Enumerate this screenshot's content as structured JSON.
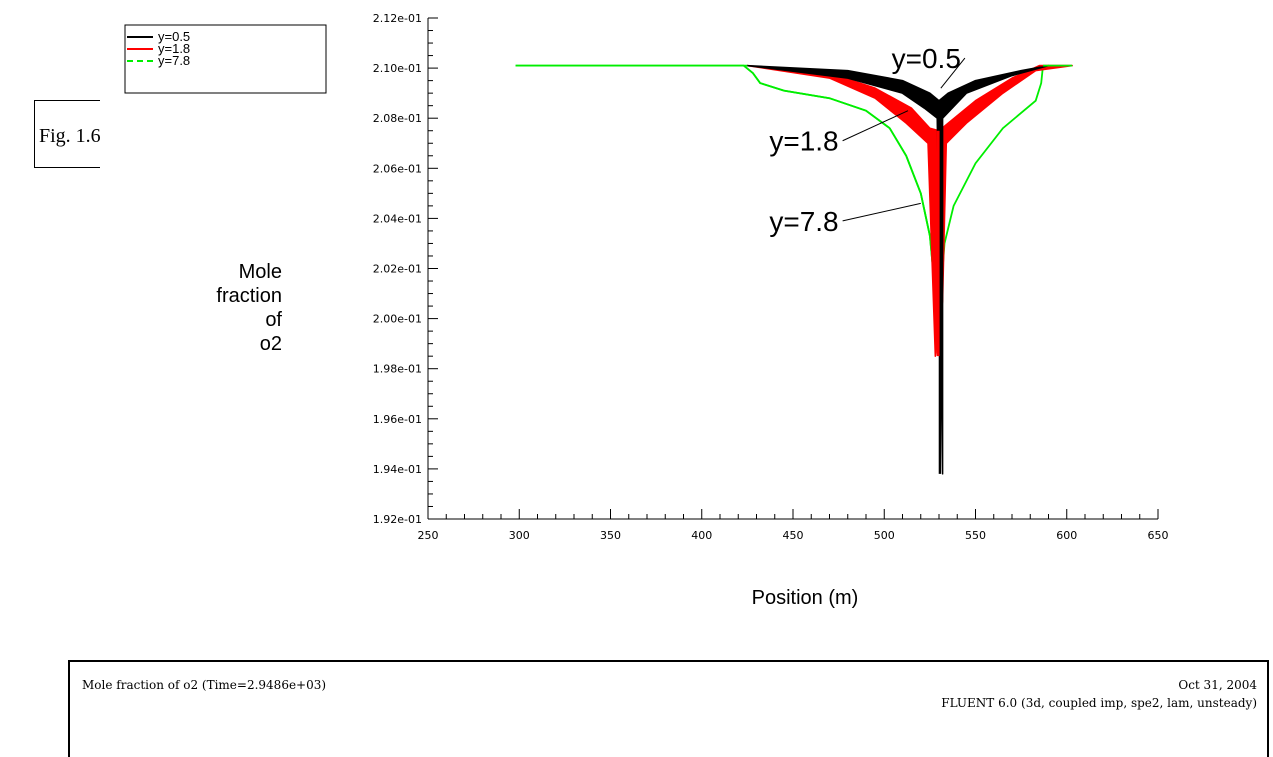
{
  "figure_label": "Fig. 1.6",
  "footer": {
    "left": "Mole fraction of o2  (Time=2.9486e+03)",
    "date": "Oct 31, 2004",
    "solver": "FLUENT 6.0 (3d, coupled imp, spe2, lam, unsteady)"
  },
  "colors": {
    "y05": "#000000",
    "y18": "#ff0000",
    "y78": "#00ee00"
  },
  "chart_data": {
    "type": "line",
    "xlabel": "Position (m)",
    "ylabel_lines": [
      "Mole",
      "fraction",
      "of",
      "o2"
    ],
    "xlim": [
      250,
      650
    ],
    "ylim": [
      0.192,
      0.212
    ],
    "x_ticks": [
      250,
      300,
      350,
      400,
      450,
      500,
      550,
      600,
      650
    ],
    "x_tick_labels": [
      "250",
      "300",
      "350",
      "400",
      "450",
      "500",
      "550",
      "600",
      "650"
    ],
    "y_ticks": [
      0.192,
      0.194,
      0.196,
      0.198,
      0.2,
      0.202,
      0.204,
      0.206,
      0.208,
      0.21,
      0.212
    ],
    "y_tick_labels": [
      "1.92e-01",
      "1.94e-01",
      "1.96e-01",
      "1.98e-01",
      "2.00e-01",
      "2.02e-01",
      "2.04e-01",
      "2.06e-01",
      "2.08e-01",
      "2.10e-01",
      "2.12e-01"
    ],
    "legend": [
      "y=0.5",
      "y=1.8",
      "y=7.8"
    ],
    "series": [
      {
        "name": "y=0.5",
        "style": "solid",
        "upper": [
          [
            425,
            0.2101
          ],
          [
            480,
            0.2099
          ],
          [
            510,
            0.2095
          ],
          [
            525,
            0.209
          ],
          [
            530,
            0.2087
          ],
          [
            535,
            0.209
          ],
          [
            550,
            0.2095
          ],
          [
            575,
            0.2099
          ],
          [
            590,
            0.2101
          ]
        ],
        "lower": [
          [
            425,
            0.2101
          ],
          [
            480,
            0.2096
          ],
          [
            510,
            0.209
          ],
          [
            522,
            0.2084
          ],
          [
            529,
            0.208
          ],
          [
            532,
            0.1938
          ],
          [
            532,
            0.208
          ],
          [
            545,
            0.209
          ],
          [
            570,
            0.2097
          ],
          [
            590,
            0.2101
          ]
        ]
      },
      {
        "name": "y=1.8",
        "style": "solid",
        "upper": [
          [
            425,
            0.2101
          ],
          [
            470,
            0.2098
          ],
          [
            495,
            0.2092
          ],
          [
            515,
            0.2084
          ],
          [
            525,
            0.2076
          ],
          [
            530,
            0.2075
          ],
          [
            535,
            0.2078
          ],
          [
            550,
            0.2087
          ],
          [
            570,
            0.2096
          ],
          [
            585,
            0.2101
          ],
          [
            603,
            0.2101
          ]
        ],
        "lower": [
          [
            425,
            0.2101
          ],
          [
            470,
            0.2096
          ],
          [
            495,
            0.2088
          ],
          [
            512,
            0.2078
          ],
          [
            524,
            0.207
          ],
          [
            528,
            0.1985
          ],
          [
            532,
            0.2007
          ],
          [
            534,
            0.207
          ],
          [
            545,
            0.2078
          ],
          [
            565,
            0.209
          ],
          [
            583,
            0.2099
          ],
          [
            603,
            0.2101
          ]
        ]
      },
      {
        "name": "y=7.8",
        "style": "dashed",
        "upper": [
          [
            298,
            0.2101
          ],
          [
            423,
            0.2101
          ],
          [
            428,
            0.2098
          ],
          [
            432,
            0.2094
          ],
          [
            445,
            0.2091
          ],
          [
            470,
            0.2088
          ],
          [
            490,
            0.2083
          ],
          [
            503,
            0.2076
          ],
          [
            512,
            0.2065
          ],
          [
            520,
            0.205
          ],
          [
            525,
            0.2033
          ],
          [
            528,
            0.201
          ],
          [
            529,
            0.199
          ],
          [
            531,
            0.201
          ],
          [
            533,
            0.203
          ],
          [
            538,
            0.2045
          ],
          [
            550,
            0.2062
          ],
          [
            565,
            0.2076
          ],
          [
            583,
            0.2087
          ],
          [
            586,
            0.2094
          ],
          [
            587,
            0.2101
          ]
        ]
      }
    ],
    "annotations": [
      {
        "text": "y=0.5",
        "x": 542,
        "y": 0.2104,
        "tx": 531,
        "ty": 0.2092
      },
      {
        "text": "y=1.8",
        "x": 475,
        "y": 0.2071,
        "tx": 513,
        "ty": 0.2083
      },
      {
        "text": "y=7.8",
        "x": 475,
        "y": 0.2039,
        "tx": 520,
        "ty": 0.2046
      }
    ]
  }
}
